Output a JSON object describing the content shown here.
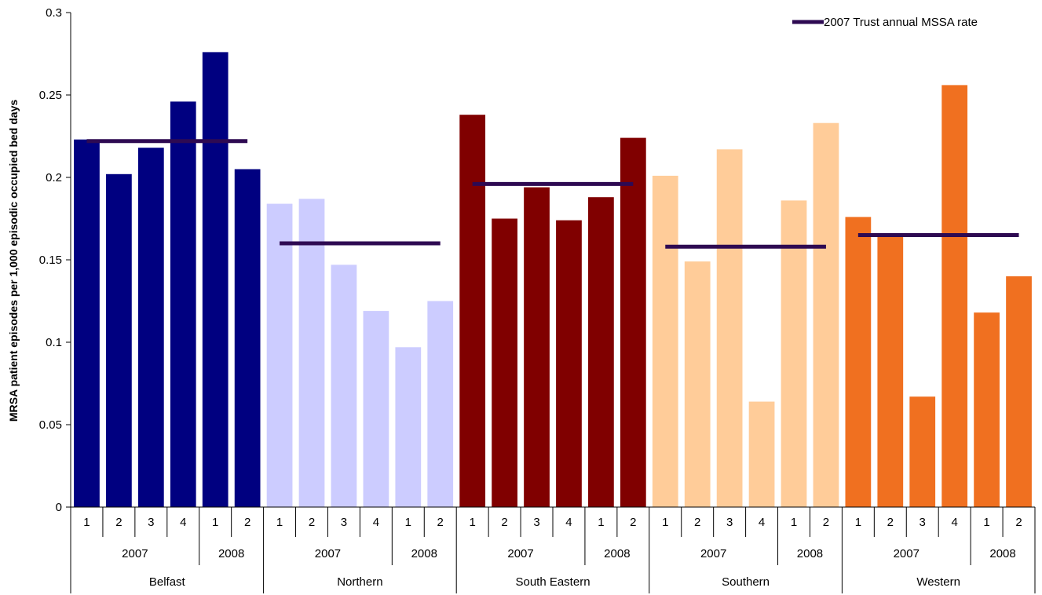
{
  "chart_data": {
    "type": "bar",
    "title": "",
    "xlabel": "",
    "ylabel": "MRSA patient episodes per 1,000 episodic occupied bed days",
    "ylim": [
      0,
      0.3
    ],
    "yticks": [
      "0",
      "0.05",
      "0.1",
      "0.15",
      "0.2",
      "0.25",
      "0.3"
    ],
    "legend": {
      "position": "top-right",
      "label": "2007 Trust annual MSSA rate",
      "color": "#2e0a52"
    },
    "quarters": [
      "1",
      "2",
      "3",
      "4",
      "1",
      "2"
    ],
    "years": [
      {
        "label": "2007",
        "span": 4
      },
      {
        "label": "2008",
        "span": 2
      }
    ],
    "groups": [
      {
        "name": "Belfast",
        "color": "#000080",
        "values": [
          0.223,
          0.202,
          0.218,
          0.246,
          0.276,
          0.205
        ],
        "mssa_rate": 0.222
      },
      {
        "name": "Northern",
        "color": "#ccccff",
        "values": [
          0.184,
          0.187,
          0.147,
          0.119,
          0.097,
          0.125
        ],
        "mssa_rate": 0.16
      },
      {
        "name": "South Eastern",
        "color": "#800000",
        "values": [
          0.238,
          0.175,
          0.194,
          0.174,
          0.188,
          0.224
        ],
        "mssa_rate": 0.196
      },
      {
        "name": "Southern",
        "color": "#ffcc99",
        "values": [
          0.201,
          0.149,
          0.217,
          0.064,
          0.186,
          0.233
        ],
        "mssa_rate": 0.158
      },
      {
        "name": "Western",
        "color": "#f07020",
        "values": [
          0.176,
          0.165,
          0.067,
          0.256,
          0.118,
          0.14
        ],
        "mssa_rate": 0.165
      }
    ]
  }
}
